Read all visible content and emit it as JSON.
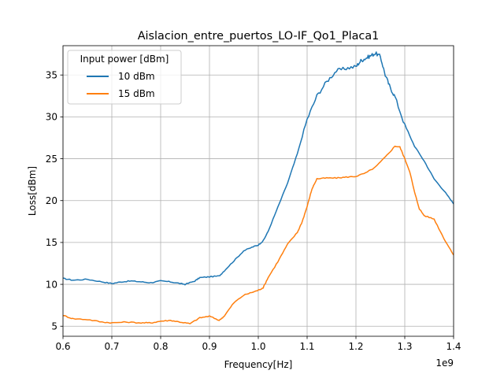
{
  "chart_data": {
    "type": "line",
    "title": "Aislacion_entre_puertos_LO-IF_Qo1_Placa1",
    "xlabel": "Frequency[Hz]",
    "ylabel": "Loss[dBm]",
    "x_offset_label": "1e9",
    "xlim": [
      0.6,
      1.4
    ],
    "ylim": [
      3.8,
      38.5
    ],
    "xticks": [
      0.6,
      0.7,
      0.8,
      0.9,
      1.0,
      1.1,
      1.2,
      1.3,
      1.4
    ],
    "xtick_labels": [
      "0.6",
      "0.7",
      "0.8",
      "0.9",
      "1.0",
      "1.1",
      "1.2",
      "1.3",
      "1.4"
    ],
    "yticks": [
      5,
      10,
      15,
      20,
      25,
      30,
      35
    ],
    "ytick_labels": [
      "5",
      "10",
      "15",
      "20",
      "25",
      "30",
      "35"
    ],
    "grid": true,
    "legend": {
      "title": "Input power [dBm]",
      "location": "upper left"
    },
    "series": [
      {
        "name": "10 dBm",
        "color": "#1f77b4",
        "x": [
          0.6,
          0.62,
          0.65,
          0.68,
          0.7,
          0.72,
          0.74,
          0.76,
          0.78,
          0.8,
          0.82,
          0.84,
          0.85,
          0.87,
          0.88,
          0.9,
          0.92,
          0.93,
          0.95,
          0.97,
          0.99,
          1.0,
          1.01,
          1.02,
          1.04,
          1.06,
          1.08,
          1.1,
          1.12,
          1.14,
          1.16,
          1.18,
          1.2,
          1.21,
          1.22,
          1.23,
          1.24,
          1.25,
          1.26,
          1.27,
          1.28,
          1.3,
          1.32,
          1.34,
          1.36,
          1.38,
          1.4
        ],
        "y": [
          10.7,
          10.5,
          10.6,
          10.3,
          10.1,
          10.3,
          10.4,
          10.3,
          10.2,
          10.4,
          10.3,
          10.1,
          10.0,
          10.4,
          10.8,
          10.9,
          11.0,
          11.6,
          12.8,
          14.0,
          14.5,
          14.7,
          15.2,
          16.3,
          19.2,
          22.1,
          25.6,
          29.7,
          32.5,
          34.2,
          35.5,
          35.8,
          36.0,
          36.7,
          37.0,
          37.3,
          37.6,
          37.2,
          35.0,
          33.5,
          32.4,
          29.0,
          26.5,
          24.7,
          22.6,
          21.2,
          19.6
        ]
      },
      {
        "name": "15 dBm",
        "color": "#ff7f0e",
        "x": [
          0.6,
          0.62,
          0.65,
          0.68,
          0.7,
          0.73,
          0.76,
          0.78,
          0.8,
          0.82,
          0.84,
          0.86,
          0.88,
          0.9,
          0.92,
          0.93,
          0.95,
          0.97,
          0.99,
          1.0,
          1.01,
          1.02,
          1.04,
          1.06,
          1.08,
          1.09,
          1.1,
          1.11,
          1.12,
          1.14,
          1.16,
          1.18,
          1.2,
          1.22,
          1.24,
          1.26,
          1.28,
          1.29,
          1.3,
          1.31,
          1.32,
          1.33,
          1.34,
          1.36,
          1.38,
          1.4
        ],
        "y": [
          6.3,
          5.9,
          5.8,
          5.5,
          5.4,
          5.5,
          5.4,
          5.4,
          5.6,
          5.7,
          5.5,
          5.3,
          6.0,
          6.2,
          5.7,
          6.2,
          7.8,
          8.7,
          9.1,
          9.3,
          9.6,
          10.8,
          12.7,
          14.8,
          16.2,
          17.5,
          19.3,
          21.4,
          22.6,
          22.7,
          22.7,
          22.8,
          22.9,
          23.3,
          24.0,
          25.2,
          26.5,
          26.4,
          25.0,
          23.5,
          21.0,
          19.0,
          18.2,
          17.8,
          15.5,
          13.5
        ]
      }
    ]
  }
}
